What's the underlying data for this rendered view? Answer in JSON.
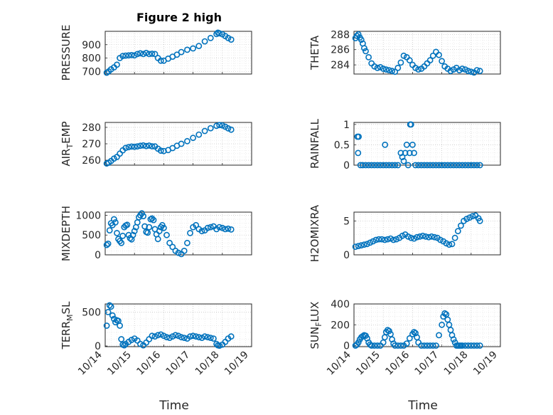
{
  "figure": {
    "title": "Figure 2 high",
    "marker_color": "#0072bd"
  },
  "chart_data": [
    {
      "type": "scatter",
      "name": "pressure",
      "col": 0,
      "row": 0,
      "title": "Figure 2 high",
      "ylabel_main": "PRESSURE",
      "ylabel_sub": "",
      "ylabel_tail": "",
      "xlim": [
        0,
        5
      ],
      "ylim": [
        680,
        1000
      ],
      "yticks": [
        700,
        800,
        900
      ],
      "ytick_labels": [
        "700",
        "800",
        "900"
      ],
      "xticks": [
        0,
        1,
        2,
        3,
        4,
        5
      ],
      "xtick_labels": [
        "10/14",
        "10/15",
        "10/16",
        "10/17",
        "10/18",
        "10/19"
      ],
      "show_xtick_labels": false,
      "x": [
        0.05,
        0.12,
        0.2,
        0.3,
        0.4,
        0.5,
        0.6,
        0.7,
        0.8,
        0.9,
        1.0,
        1.1,
        1.2,
        1.3,
        1.4,
        1.5,
        1.6,
        1.7,
        1.8,
        1.9,
        2.0,
        2.15,
        2.3,
        2.45,
        2.6,
        2.8,
        3.0,
        3.2,
        3.4,
        3.6,
        3.8,
        3.85,
        3.9,
        4.0,
        4.1,
        4.2,
        4.3
      ],
      "y": [
        690,
        700,
        715,
        730,
        750,
        800,
        815,
        818,
        820,
        822,
        820,
        830,
        835,
        830,
        838,
        830,
        832,
        830,
        800,
        780,
        780,
        795,
        810,
        825,
        845,
        862,
        872,
        890,
        925,
        950,
        980,
        990,
        985,
        978,
        965,
        950,
        938
      ]
    },
    {
      "type": "scatter",
      "name": "theta",
      "col": 1,
      "row": 0,
      "title": "",
      "ylabel_main": "THETA",
      "ylabel_sub": "",
      "ylabel_tail": "",
      "xlim": [
        0,
        5
      ],
      "ylim": [
        282.8,
        288.4
      ],
      "yticks": [
        284,
        286,
        288
      ],
      "ytick_labels": [
        "284",
        "286",
        "288"
      ],
      "xticks": [
        0,
        1,
        2,
        3,
        4,
        5
      ],
      "xtick_labels": [
        "10/14",
        "10/15",
        "10/16",
        "10/17",
        "10/18",
        "10/19"
      ],
      "show_xtick_labels": false,
      "x": [
        0.05,
        0.1,
        0.15,
        0.2,
        0.25,
        0.3,
        0.35,
        0.4,
        0.5,
        0.6,
        0.7,
        0.8,
        0.9,
        1.0,
        1.1,
        1.2,
        1.3,
        1.4,
        1.5,
        1.6,
        1.7,
        1.8,
        1.9,
        2.0,
        2.1,
        2.2,
        2.3,
        2.4,
        2.5,
        2.6,
        2.7,
        2.8,
        2.9,
        3.0,
        3.1,
        3.2,
        3.3,
        3.4,
        3.5,
        3.6,
        3.7,
        3.8,
        3.9,
        4.0,
        4.1,
        4.2,
        4.3
      ],
      "y": [
        287.5,
        287.8,
        288.0,
        287.6,
        287.3,
        286.8,
        286.2,
        285.8,
        285.0,
        284.2,
        283.8,
        283.6,
        283.7,
        283.5,
        283.4,
        283.3,
        283.2,
        283.1,
        283.6,
        284.3,
        285.2,
        285.0,
        284.6,
        284.0,
        283.6,
        283.4,
        283.5,
        283.8,
        284.2,
        284.6,
        285.2,
        285.7,
        285.3,
        284.5,
        283.8,
        283.5,
        283.2,
        283.4,
        283.6,
        283.3,
        283.5,
        283.4,
        283.2,
        283.1,
        283.0,
        283.3,
        283.2
      ]
    },
    {
      "type": "scatter",
      "name": "air_temp",
      "col": 0,
      "row": 1,
      "title": "",
      "ylabel_main": "AIR",
      "ylabel_sub": "T",
      "ylabel_tail": "EMP",
      "xlim": [
        0,
        5
      ],
      "ylim": [
        257,
        283
      ],
      "yticks": [
        260,
        270,
        280
      ],
      "ytick_labels": [
        "260",
        "270",
        "280"
      ],
      "xticks": [
        0,
        1,
        2,
        3,
        4,
        5
      ],
      "xtick_labels": [
        "10/14",
        "10/15",
        "10/16",
        "10/17",
        "10/18",
        "10/19"
      ],
      "show_xtick_labels": false,
      "x": [
        0.05,
        0.12,
        0.2,
        0.3,
        0.4,
        0.5,
        0.6,
        0.7,
        0.8,
        0.9,
        1.0,
        1.1,
        1.2,
        1.3,
        1.4,
        1.5,
        1.6,
        1.7,
        1.8,
        1.9,
        2.0,
        2.15,
        2.3,
        2.45,
        2.6,
        2.8,
        3.0,
        3.2,
        3.4,
        3.6,
        3.8,
        3.9,
        4.0,
        4.1,
        4.2,
        4.3
      ],
      "y": [
        258,
        258.5,
        259.5,
        261,
        262,
        264,
        266,
        267.5,
        268,
        268.3,
        268.2,
        268.4,
        268.8,
        269,
        268.6,
        268.9,
        268.5,
        268.4,
        267,
        265.8,
        265.6,
        266.2,
        267.4,
        268.8,
        270,
        271.6,
        273.6,
        275.6,
        277.8,
        279.5,
        280.9,
        281.4,
        281.2,
        280.4,
        279.4,
        278.6
      ]
    },
    {
      "type": "scatter",
      "name": "rainfall",
      "col": 1,
      "row": 1,
      "title": "",
      "ylabel_main": "RAINFALL",
      "ylabel_sub": "",
      "ylabel_tail": "",
      "xlim": [
        0,
        5
      ],
      "ylim": [
        0,
        1.05
      ],
      "yticks": [
        0,
        0.5,
        1
      ],
      "ytick_labels": [
        "0",
        "0.5",
        "1"
      ],
      "xticks": [
        0,
        1,
        2,
        3,
        4,
        5
      ],
      "xtick_labels": [
        "10/14",
        "10/15",
        "10/16",
        "10/17",
        "10/18",
        "10/19"
      ],
      "show_xtick_labels": false,
      "x": [
        0.12,
        0.16,
        0.14,
        0.22,
        0.3,
        0.4,
        0.5,
        0.6,
        0.7,
        0.8,
        0.9,
        1.0,
        1.06,
        1.1,
        1.2,
        1.3,
        1.4,
        1.5,
        1.6,
        1.65,
        1.7,
        1.75,
        1.8,
        1.85,
        1.9,
        1.92,
        1.95,
        2.0,
        2.05,
        2.1,
        2.2,
        2.3,
        2.4,
        2.5,
        2.6,
        2.7,
        2.8,
        2.9,
        3.0,
        3.1,
        3.2,
        3.3,
        3.4,
        3.5,
        3.6,
        3.7,
        3.8,
        3.9,
        4.0,
        4.1,
        4.2,
        4.3
      ],
      "y": [
        0.7,
        0.7,
        0.3,
        0,
        0,
        0,
        0,
        0,
        0,
        0,
        0,
        0,
        0.5,
        0,
        0,
        0,
        0,
        0,
        0.3,
        0.2,
        0.1,
        0.3,
        0.5,
        0,
        0.3,
        1.0,
        1.0,
        0.5,
        0.3,
        0,
        0,
        0,
        0,
        0,
        0,
        0,
        0,
        0,
        0,
        0,
        0,
        0,
        0,
        0,
        0,
        0,
        0,
        0,
        0,
        0,
        0,
        0
      ]
    },
    {
      "type": "scatter",
      "name": "mixdepth",
      "col": 0,
      "row": 2,
      "title": "",
      "ylabel_main": "MIXDEPTH",
      "ylabel_sub": "",
      "ylabel_tail": "",
      "xlim": [
        0,
        5
      ],
      "ylim": [
        0,
        1080
      ],
      "yticks": [
        0,
        500,
        1000
      ],
      "ytick_labels": [
        "0",
        "500",
        "1000"
      ],
      "xticks": [
        0,
        1,
        2,
        3,
        4,
        5
      ],
      "xtick_labels": [
        "10/14",
        "10/15",
        "10/16",
        "10/17",
        "10/18",
        "10/19"
      ],
      "show_xtick_labels": false,
      "x": [
        0.05,
        0.1,
        0.15,
        0.2,
        0.25,
        0.3,
        0.35,
        0.4,
        0.45,
        0.5,
        0.55,
        0.6,
        0.65,
        0.7,
        0.75,
        0.8,
        0.85,
        0.9,
        0.95,
        1.0,
        1.05,
        1.1,
        1.15,
        1.2,
        1.25,
        1.3,
        1.35,
        1.4,
        1.45,
        1.5,
        1.55,
        1.6,
        1.65,
        1.7,
        1.75,
        1.8,
        1.85,
        1.9,
        1.95,
        2.0,
        2.1,
        2.2,
        2.3,
        2.4,
        2.5,
        2.6,
        2.7,
        2.8,
        2.9,
        3.0,
        3.1,
        3.2,
        3.3,
        3.4,
        3.5,
        3.6,
        3.7,
        3.8,
        3.9,
        4.0,
        4.1,
        4.2,
        4.3
      ],
      "y": [
        250,
        280,
        620,
        800,
        750,
        900,
        820,
        550,
        400,
        350,
        300,
        480,
        700,
        740,
        760,
        500,
        420,
        390,
        500,
        600,
        700,
        820,
        950,
        1000,
        1050,
        980,
        720,
        580,
        560,
        700,
        900,
        920,
        880,
        650,
        520,
        400,
        600,
        700,
        750,
        680,
        500,
        300,
        200,
        100,
        50,
        20,
        100,
        300,
        550,
        700,
        750,
        650,
        600,
        620,
        680,
        700,
        720,
        650,
        700,
        680,
        650,
        660,
        640
      ]
    },
    {
      "type": "scatter",
      "name": "h2omixra",
      "col": 1,
      "row": 2,
      "title": "",
      "ylabel_main": "H2OMIXRA",
      "ylabel_sub": "",
      "ylabel_tail": "",
      "xlim": [
        0,
        5
      ],
      "ylim": [
        0,
        6.3
      ],
      "yticks": [
        0,
        5
      ],
      "ytick_labels": [
        "0",
        "5"
      ],
      "xticks": [
        0,
        1,
        2,
        3,
        4,
        5
      ],
      "xtick_labels": [
        "10/14",
        "10/15",
        "10/16",
        "10/17",
        "10/18",
        "10/19"
      ],
      "show_xtick_labels": false,
      "x": [
        0.05,
        0.15,
        0.25,
        0.35,
        0.45,
        0.55,
        0.65,
        0.75,
        0.85,
        0.95,
        1.05,
        1.15,
        1.25,
        1.35,
        1.45,
        1.55,
        1.65,
        1.75,
        1.85,
        1.95,
        2.05,
        2.15,
        2.25,
        2.35,
        2.45,
        2.55,
        2.65,
        2.75,
        2.85,
        2.95,
        3.05,
        3.15,
        3.25,
        3.35,
        3.45,
        3.55,
        3.65,
        3.75,
        3.85,
        3.95,
        4.05,
        4.15,
        4.25,
        4.3
      ],
      "y": [
        1.2,
        1.3,
        1.4,
        1.5,
        1.6,
        1.8,
        2.0,
        2.2,
        2.3,
        2.3,
        2.2,
        2.3,
        2.4,
        2.2,
        2.3,
        2.5,
        2.8,
        3.0,
        2.7,
        2.5,
        2.4,
        2.6,
        2.7,
        2.8,
        2.7,
        2.6,
        2.7,
        2.6,
        2.5,
        2.2,
        2.0,
        1.7,
        1.5,
        1.6,
        2.5,
        3.5,
        4.3,
        5.0,
        5.3,
        5.5,
        5.7,
        5.8,
        5.4,
        5.0
      ]
    },
    {
      "type": "scatter",
      "name": "terr_msl",
      "col": 0,
      "row": 3,
      "title": "",
      "ylabel_main": "TERR",
      "ylabel_sub": "M",
      "ylabel_tail": "SL",
      "xlim": [
        0,
        5
      ],
      "ylim": [
        -10,
        620
      ],
      "yticks": [
        0,
        500
      ],
      "ytick_labels": [
        "0",
        "500"
      ],
      "xticks": [
        0,
        1,
        2,
        3,
        4,
        5
      ],
      "xtick_labels": [
        "10/14",
        "10/15",
        "10/16",
        "10/17",
        "10/18",
        "10/19"
      ],
      "show_xtick_labels": true,
      "x": [
        0.05,
        0.1,
        0.15,
        0.2,
        0.25,
        0.3,
        0.35,
        0.4,
        0.45,
        0.5,
        0.55,
        0.6,
        0.65,
        0.7,
        0.8,
        0.9,
        1.0,
        1.1,
        1.2,
        1.3,
        1.4,
        1.5,
        1.6,
        1.7,
        1.8,
        1.9,
        2.0,
        2.1,
        2.2,
        2.3,
        2.4,
        2.5,
        2.6,
        2.7,
        2.8,
        2.9,
        3.0,
        3.1,
        3.2,
        3.3,
        3.4,
        3.5,
        3.6,
        3.7,
        3.8,
        3.85,
        3.9,
        4.0,
        4.1,
        4.2,
        4.3
      ],
      "y": [
        300,
        500,
        600,
        580,
        450,
        400,
        350,
        380,
        370,
        300,
        100,
        20,
        10,
        30,
        60,
        90,
        110,
        80,
        30,
        10,
        50,
        100,
        150,
        140,
        160,
        170,
        150,
        130,
        120,
        140,
        160,
        150,
        130,
        120,
        110,
        140,
        150,
        140,
        130,
        120,
        140,
        130,
        120,
        110,
        30,
        10,
        5,
        20,
        60,
        110,
        140
      ]
    },
    {
      "type": "scatter",
      "name": "sun_flux",
      "col": 1,
      "row": 3,
      "title": "",
      "ylabel_main": "SUN",
      "ylabel_sub": "F",
      "ylabel_tail": "LUX",
      "xlim": [
        0,
        5
      ],
      "ylim": [
        -10,
        400
      ],
      "yticks": [
        0,
        200,
        400
      ],
      "ytick_labels": [
        "0",
        "200",
        "400"
      ],
      "xticks": [
        0,
        1,
        2,
        3,
        4,
        5
      ],
      "xtick_labels": [
        "10/14",
        "10/15",
        "10/16",
        "10/17",
        "10/18",
        "10/19"
      ],
      "show_xtick_labels": true,
      "x": [
        0.05,
        0.1,
        0.15,
        0.2,
        0.25,
        0.3,
        0.35,
        0.4,
        0.45,
        0.5,
        0.55,
        0.6,
        0.7,
        0.8,
        0.9,
        1.0,
        1.05,
        1.1,
        1.15,
        1.2,
        1.25,
        1.3,
        1.35,
        1.4,
        1.5,
        1.6,
        1.7,
        1.8,
        1.9,
        2.0,
        2.05,
        2.1,
        2.15,
        2.2,
        2.3,
        2.4,
        2.5,
        2.6,
        2.7,
        2.8,
        2.9,
        3.0,
        3.05,
        3.1,
        3.15,
        3.2,
        3.25,
        3.3,
        3.35,
        3.4,
        3.45,
        3.5,
        3.55,
        3.6,
        3.65,
        3.7,
        3.8,
        3.9,
        4.0,
        4.1,
        4.2,
        4.3
      ],
      "y": [
        0,
        10,
        30,
        60,
        80,
        90,
        100,
        95,
        70,
        30,
        10,
        0,
        0,
        0,
        0,
        30,
        80,
        130,
        150,
        140,
        110,
        60,
        20,
        0,
        0,
        0,
        0,
        20,
        70,
        110,
        130,
        120,
        80,
        30,
        0,
        0,
        0,
        0,
        0,
        0,
        100,
        200,
        280,
        310,
        300,
        250,
        200,
        150,
        100,
        60,
        30,
        0,
        0,
        0,
        0,
        0,
        0,
        0,
        0,
        0,
        0,
        0
      ]
    }
  ]
}
